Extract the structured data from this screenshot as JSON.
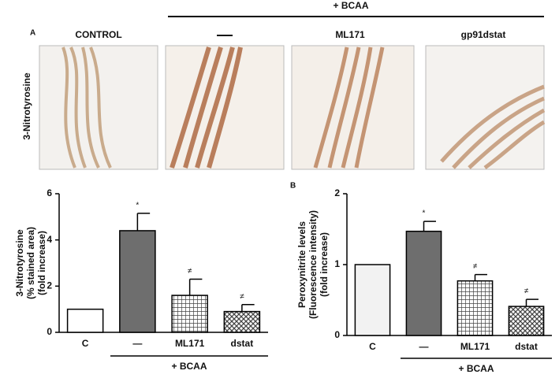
{
  "panel_a": {
    "group_label": "+ BCAA",
    "panel_letter": "A",
    "row_label": "3-Nitrotyrosine",
    "columns": [
      "CONTROL",
      "—",
      "ML171",
      "gp91dstat"
    ]
  },
  "chart_data": [
    {
      "type": "bar",
      "ylabel": [
        "3-Nitrotyrosine",
        "(% stained area)",
        "(fold increase)"
      ],
      "categories": [
        "C",
        "—",
        "ML171",
        "dstat"
      ],
      "values": [
        1,
        4.4,
        1.6,
        0.9
      ],
      "errors": [
        0,
        0.75,
        0.7,
        0.3
      ],
      "annotations": [
        null,
        "*",
        "≠",
        "≠"
      ],
      "fills": [
        "#ffffff",
        "#6e6e6e",
        "grid",
        "crosshatch"
      ],
      "group_label": "+ BCAA",
      "ylim": [
        0,
        6
      ],
      "yticks": [
        0,
        2,
        4,
        6
      ]
    },
    {
      "type": "bar",
      "panel_letter": "B",
      "ylabel": [
        "Peroxynitrite levels",
        "(Fluorescence intensity)",
        "(fold increase)"
      ],
      "categories": [
        "C",
        "—",
        "ML171",
        "dstat"
      ],
      "values": [
        1,
        1.47,
        0.77,
        0.41
      ],
      "errors": [
        0,
        0.14,
        0.09,
        0.1
      ],
      "annotations": [
        null,
        "*",
        "≠",
        "≠"
      ],
      "fills": [
        "#f2f2f2",
        "#6e6e6e",
        "grid",
        "crosshatch"
      ],
      "group_label": "+ BCAA",
      "ylim": [
        0,
        2
      ],
      "yticks": [
        0,
        1,
        2
      ]
    }
  ]
}
